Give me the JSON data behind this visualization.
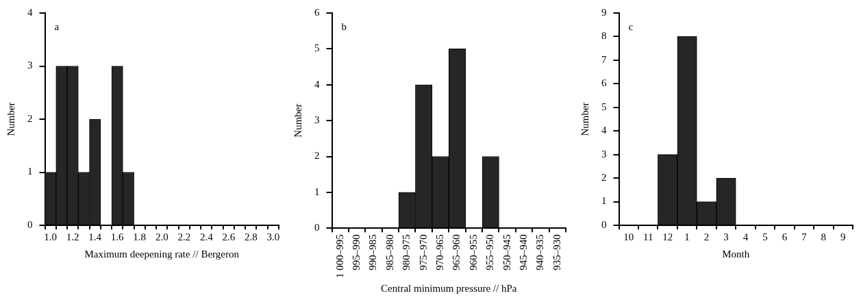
{
  "chart_data": [
    {
      "type": "bar",
      "annotations": [
        {
          "text": "a"
        }
      ],
      "xlabel": "Maximum deepening rate // Bergeron",
      "ylabel": "Number",
      "categories": [
        "1.0",
        null,
        "1.2",
        null,
        "1.4",
        null,
        "1.6",
        null,
        "1.8",
        null,
        "2.0",
        null,
        "2.2",
        null,
        "2.4",
        null,
        "2.6",
        null,
        "2.8",
        null,
        "3.0"
      ],
      "values": [
        1,
        3,
        3,
        1,
        2,
        0,
        3,
        1,
        0,
        0,
        0,
        0,
        0,
        0,
        0,
        0,
        0,
        0,
        0,
        0,
        0
      ],
      "color": "#262626",
      "ylim": [
        0,
        4
      ],
      "yticks": [
        0,
        1,
        2,
        3,
        4
      ],
      "grid": false,
      "legend": false
    },
    {
      "type": "bar",
      "annotations": [
        {
          "text": "b"
        }
      ],
      "xlabel": "Central minimum pressure // hPa",
      "ylabel": "Number",
      "categories": [
        "1 000–995",
        "995–990",
        "990–985",
        "985–980",
        "980–975",
        "975–970",
        "970–965",
        "965–960",
        "960–955",
        "955–950",
        "950–945",
        "945–940",
        "940–935",
        "935–930"
      ],
      "values": [
        0,
        0,
        0,
        0,
        1,
        4,
        2,
        5,
        0,
        2,
        0,
        0,
        0,
        0
      ],
      "color": "#262626",
      "ylim": [
        0,
        6
      ],
      "yticks": [
        0,
        1,
        2,
        3,
        4,
        5,
        6
      ],
      "grid": false,
      "legend": false
    },
    {
      "type": "bar",
      "annotations": [
        {
          "text": "c"
        }
      ],
      "xlabel": "Month",
      "ylabel": "Number",
      "categories": [
        "10",
        "11",
        "12",
        "1",
        "2",
        "3",
        "4",
        "5",
        "6",
        "7",
        "8",
        "9"
      ],
      "values": [
        0,
        0,
        3,
        8,
        1,
        2,
        0,
        0,
        0,
        0,
        0,
        0
      ],
      "color": "#262626",
      "ylim": [
        0,
        9
      ],
      "yticks": [
        0,
        1,
        2,
        3,
        4,
        5,
        6,
        7,
        8,
        9
      ],
      "grid": false,
      "legend": false
    }
  ]
}
